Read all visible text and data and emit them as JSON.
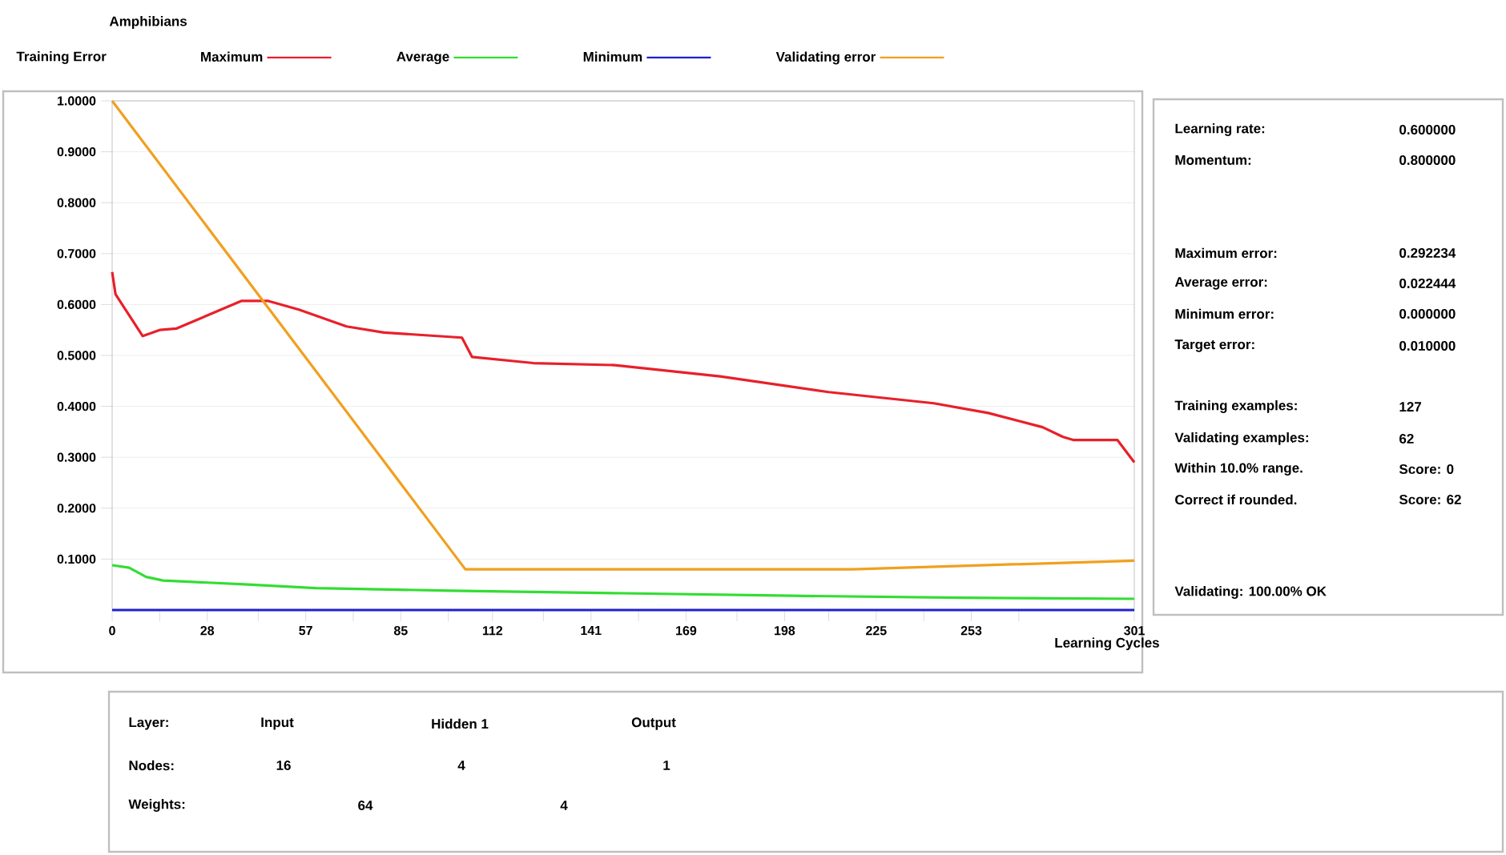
{
  "chart_data": [
    {
      "type": "line",
      "title": "Amphibians",
      "xlabel": "Learning Cycles",
      "legend_title": "Training Error",
      "legend": "top",
      "grid": "y",
      "marker": "none",
      "line_style": "solid",
      "xlim": [
        0,
        301
      ],
      "ylim": [
        0,
        1
      ],
      "xticks": [
        0,
        {
          "value": 14,
          "label": null
        },
        28,
        {
          "value": 43,
          "label": null
        },
        57,
        {
          "value": 71,
          "label": null
        },
        85,
        {
          "value": 99,
          "label": null
        },
        112,
        {
          "value": 127,
          "label": null
        },
        141,
        {
          "value": 155,
          "label": null
        },
        169,
        {
          "value": 184,
          "label": null
        },
        198,
        {
          "value": 211,
          "label": null
        },
        225,
        {
          "value": 239,
          "label": null
        },
        253,
        {
          "value": 267,
          "label": null
        },
        301
      ],
      "yticks": [
        {
          "value": 0.1,
          "label": "0.1000"
        },
        {
          "value": 0.2,
          "label": "0.2000"
        },
        {
          "value": 0.3,
          "label": "0.3000"
        },
        {
          "value": 0.4,
          "label": "0.4000"
        },
        {
          "value": 0.5,
          "label": "0.5000"
        },
        {
          "value": 0.6,
          "label": "0.6000"
        },
        {
          "value": 0.7,
          "label": "0.7000"
        },
        {
          "value": 0.8,
          "label": "0.8000"
        },
        {
          "value": 0.9,
          "label": "0.9000"
        },
        {
          "value": 1,
          "label": "1.0000"
        }
      ],
      "series": [
        {
          "name": "Maximum",
          "color": "#e8202a",
          "x": [
            0,
            1,
            9,
            14,
            19,
            38,
            46,
            55,
            69,
            80,
            103,
            106,
            124,
            148,
            179,
            211,
            242,
            258,
            274,
            280,
            283,
            296,
            301
          ],
          "values": [
            0.664,
            0.62,
            0.538,
            0.55,
            0.553,
            0.607,
            0.607,
            0.59,
            0.557,
            0.545,
            0.535,
            0.497,
            0.485,
            0.481,
            0.459,
            0.428,
            0.406,
            0.387,
            0.359,
            0.34,
            0.334,
            0.334,
            0.29
          ]
        },
        {
          "name": "Average",
          "color": "#33dd33",
          "x": [
            0,
            5,
            10,
            15,
            40,
            60,
            100,
            150,
            200,
            250,
            301
          ],
          "values": [
            0.088,
            0.083,
            0.065,
            0.058,
            0.05,
            0.043,
            0.038,
            0.033,
            0.028,
            0.024,
            0.022
          ]
        },
        {
          "name": "Minimum",
          "color": "#2020cc",
          "x": [
            0,
            301
          ],
          "values": [
            0,
            0
          ]
        },
        {
          "name": "Validating error",
          "color": "#f0a020",
          "x": [
            0,
            104,
            218,
            301
          ],
          "values": [
            1.0,
            0.08,
            0.08,
            0.097
          ]
        }
      ]
    },
    {
      "type": "other",
      "annotations": [
        "Learning rate:",
        "0.600000",
        "Momentum:",
        "0.800000",
        "Maximum error:",
        "0.292234",
        "Average error:",
        "0.022444",
        "Minimum error:",
        "0.000000",
        "Target error:",
        "0.010000",
        "Training examples:",
        "127",
        "Validating examples:",
        "62",
        "Within 10.0% range.",
        "Score: 0",
        "Correct if rounded.",
        "Score: 62",
        "Validating: 100.00% OK"
      ]
    },
    {
      "type": "other",
      "annotations": [
        "Layer:",
        "Input",
        "Hidden 1",
        "Output",
        "Nodes:",
        "16",
        "4",
        "1",
        "Weights:",
        "64",
        "4"
      ]
    }
  ]
}
